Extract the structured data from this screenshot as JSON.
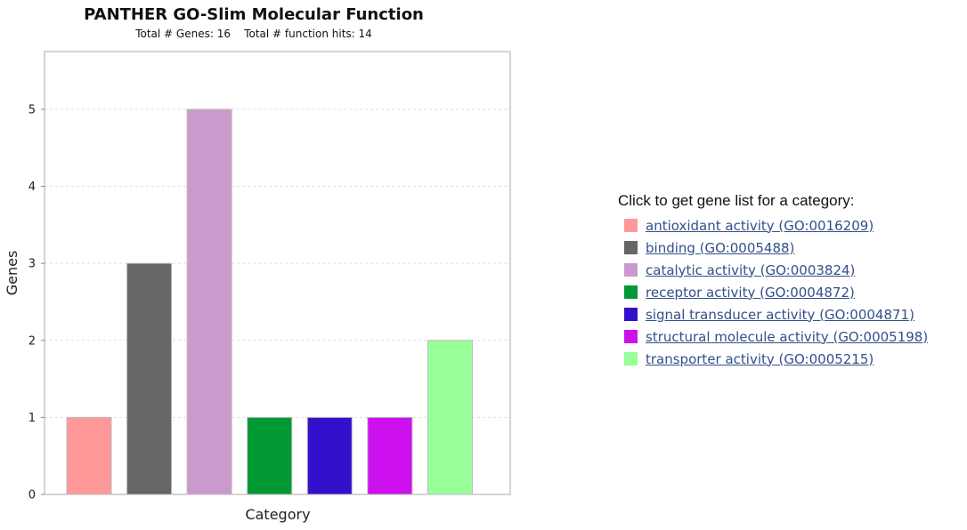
{
  "chart_data": {
    "type": "bar",
    "title": "PANTHER GO-Slim Molecular Function",
    "subtitle": "Total # Genes: 16    Total # function hits: 14",
    "xlabel": "Category",
    "ylabel": "Genes",
    "ylim": [
      0,
      5.75
    ],
    "yticks": [
      0,
      1,
      2,
      3,
      4,
      5
    ],
    "grid": true,
    "categories": [
      "antioxidant activity (GO:0016209)",
      "binding (GO:0005488)",
      "catalytic activity (GO:0003824)",
      "receptor activity (GO:0004872)",
      "signal transducer activity (GO:0004871)",
      "structural molecule activity (GO:0005198)",
      "transporter activity (GO:0005215)"
    ],
    "values": [
      1,
      3,
      5,
      1,
      1,
      1,
      2
    ],
    "colors": [
      "#ff9999",
      "#666666",
      "#cc99cc",
      "#009933",
      "#3311cc",
      "#cc11ee",
      "#99ff99"
    ],
    "legend_placement": "right"
  },
  "legend": {
    "heading": "Click to get gene list for a category:",
    "items": [
      {
        "label": "antioxidant activity (GO:0016209)",
        "color": "#ff9999"
      },
      {
        "label": "binding (GO:0005488)",
        "color": "#666666"
      },
      {
        "label": "catalytic activity (GO:0003824)",
        "color": "#cc99cc"
      },
      {
        "label": "receptor activity (GO:0004872)",
        "color": "#009933"
      },
      {
        "label": "signal transducer activity (GO:0004871)",
        "color": "#3311cc"
      },
      {
        "label": "structural molecule activity (GO:0005198)",
        "color": "#cc11ee"
      },
      {
        "label": "transporter activity (GO:0005215)",
        "color": "#99ff99"
      }
    ]
  }
}
